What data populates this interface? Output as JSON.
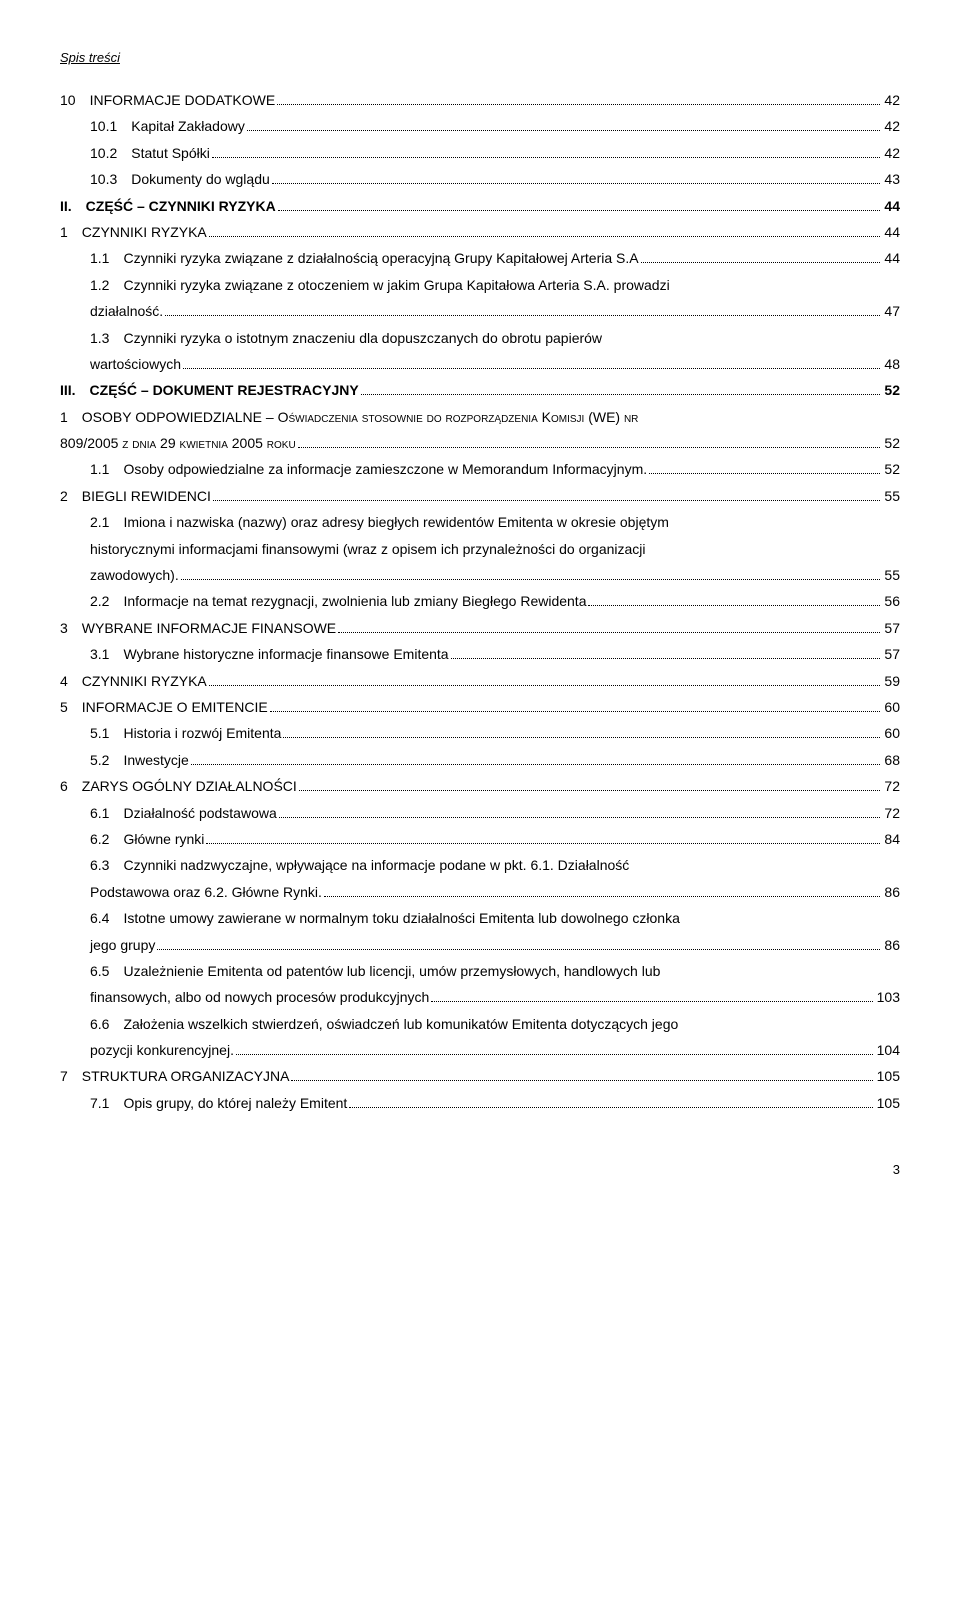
{
  "header": "Spis treści",
  "toc": [
    {
      "indent": "ind0",
      "bold": false,
      "italic": false,
      "text": "10 INFORMACJE DODATKOWE",
      "page": "42"
    },
    {
      "indent": "ind1",
      "bold": false,
      "italic": true,
      "text": "10.1 Kapitał Zakładowy",
      "page": "42"
    },
    {
      "indent": "ind1",
      "bold": false,
      "italic": true,
      "text": "10.2 Statut Spółki",
      "page": "42"
    },
    {
      "indent": "ind1",
      "bold": false,
      "italic": true,
      "text": "10.3 Dokumenty do wglądu",
      "page": "43"
    },
    {
      "indent": "ind0",
      "bold": true,
      "italic": false,
      "text": "II. CZĘŚĆ – CZYNNIKI RYZYKA",
      "page": "44"
    },
    {
      "indent": "ind0",
      "bold": false,
      "italic": false,
      "text": "1 CZYNNIKI RYZYKA",
      "page": "44"
    },
    {
      "indent": "ind1",
      "bold": false,
      "italic": true,
      "text": "1.1 Czynniki ryzyka związane z działalnością operacyjną Grupy Kapitałowej Arteria S.A",
      "page": "44"
    },
    {
      "indent": "ind1",
      "bold": false,
      "italic": true,
      "text": "1.2 Czynniki ryzyka związane z otoczeniem w jakim Grupa Kapitałowa Arteria S.A. prowadzi",
      "cont": "działalność.",
      "page": "47"
    },
    {
      "indent": "ind1",
      "bold": false,
      "italic": true,
      "text": "1.3 Czynniki ryzyka o istotnym znaczeniu dla dopuszczanych do obrotu papierów",
      "cont": "wartościowych",
      "page": "48"
    },
    {
      "indent": "ind0",
      "bold": true,
      "italic": false,
      "text": "III. CZĘŚĆ – DOKUMENT REJESTRACYJNY",
      "page": "52"
    },
    {
      "indent": "ind0",
      "bold": false,
      "italic": false,
      "sc": true,
      "text": "1 OSOBY ODPOWIEDZIALNE – Oświadczenia stosownie do rozporządzenia Komisji (WE) nr",
      "cont_sc": true,
      "cont": "809/2005 z dnia 29 kwietnia 2005 roku",
      "page": "52"
    },
    {
      "indent": "ind1",
      "bold": false,
      "italic": true,
      "text": "1.1 Osoby odpowiedzialne za informacje zamieszczone w Memorandum Informacyjnym.",
      "page": "52"
    },
    {
      "indent": "ind0",
      "bold": false,
      "italic": false,
      "text": "2 BIEGLI REWIDENCI",
      "page": "55"
    },
    {
      "indent": "ind1",
      "bold": false,
      "italic": true,
      "text": "2.1 Imiona i nazwiska (nazwy) oraz adresy biegłych rewidentów Emitenta w okresie objętym",
      "cont": "historycznymi informacjami finansowymi (wraz z opisem ich przynależności do organizacji",
      "cont2": "zawodowych).",
      "page": "55"
    },
    {
      "indent": "ind1",
      "bold": false,
      "italic": true,
      "text": "2.2 Informacje na temat rezygnacji, zwolnienia lub zmiany Biegłego Rewidenta",
      "page": "56"
    },
    {
      "indent": "ind0",
      "bold": false,
      "italic": false,
      "text": "3 WYBRANE INFORMACJE FINANSOWE",
      "page": "57"
    },
    {
      "indent": "ind1",
      "bold": false,
      "italic": true,
      "text": "3.1 Wybrane historyczne informacje finansowe Emitenta",
      "page": "57"
    },
    {
      "indent": "ind0",
      "bold": false,
      "italic": false,
      "text": "4 CZYNNIKI RYZYKA",
      "page": "59"
    },
    {
      "indent": "ind0",
      "bold": false,
      "italic": false,
      "text": "5 INFORMACJE O EMITENCIE",
      "page": "60"
    },
    {
      "indent": "ind1",
      "bold": false,
      "italic": true,
      "text": "5.1 Historia i rozwój Emitenta",
      "page": "60"
    },
    {
      "indent": "ind1",
      "bold": false,
      "italic": true,
      "text": "5.2 Inwestycje",
      "page": "68"
    },
    {
      "indent": "ind0",
      "bold": false,
      "italic": false,
      "text": "6 ZARYS OGÓLNY DZIAŁALNOŚCI",
      "page": "72"
    },
    {
      "indent": "ind1",
      "bold": false,
      "italic": true,
      "text": "6.1 Działalność podstawowa",
      "page": "72"
    },
    {
      "indent": "ind1",
      "bold": false,
      "italic": true,
      "text": "6.2 Główne rynki",
      "page": "84"
    },
    {
      "indent": "ind1",
      "bold": false,
      "italic": true,
      "text": "6.3 Czynniki nadzwyczajne, wpływające na informacje podane w pkt. 6.1. Działalność",
      "cont": "Podstawowa oraz 6.2. Główne Rynki.",
      "page": "86"
    },
    {
      "indent": "ind1",
      "bold": false,
      "italic": true,
      "text": "6.4 Istotne umowy zawierane w normalnym toku działalności Emitenta lub dowolnego członka",
      "cont": "jego grupy",
      "page": "86"
    },
    {
      "indent": "ind1",
      "bold": false,
      "italic": true,
      "text": "6.5 Uzależnienie Emitenta od patentów lub licencji, umów przemysłowych, handlowych lub",
      "cont": "finansowych, albo od nowych procesów produkcyjnych",
      "page": "103"
    },
    {
      "indent": "ind1",
      "bold": false,
      "italic": true,
      "text": "6.6 Założenia wszelkich stwierdzeń, oświadczeń lub komunikatów Emitenta dotyczących jego",
      "cont": "pozycji konkurencyjnej.",
      "page": "104"
    },
    {
      "indent": "ind0",
      "bold": false,
      "italic": false,
      "text": "7 STRUKTURA ORGANIZACYJNA",
      "page": "105"
    },
    {
      "indent": "ind1",
      "bold": false,
      "italic": true,
      "text": "7.1 Opis grupy, do której należy Emitent",
      "page": "105"
    }
  ],
  "footer_page": "3"
}
